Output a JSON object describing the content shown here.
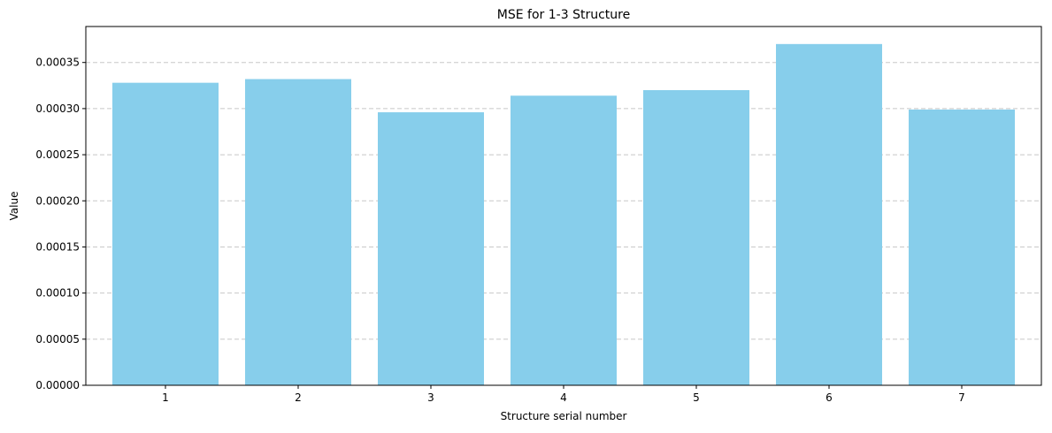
{
  "chart_data": {
    "type": "bar",
    "title": "MSE for 1-3 Structure",
    "xlabel": "Structure serial number",
    "ylabel": "Value",
    "categories": [
      "1",
      "2",
      "3",
      "4",
      "5",
      "6",
      "7"
    ],
    "values": [
      0.000328,
      0.000332,
      0.000296,
      0.000314,
      0.00032,
      0.00037,
      0.000299
    ],
    "ylim": [
      0,
      0.000389
    ],
    "yticks": [
      "0.00000",
      "0.00005",
      "0.00010",
      "0.00015",
      "0.00020",
      "0.00025",
      "0.00030",
      "0.00035"
    ],
    "ytick_values": [
      0,
      5e-05,
      0.0001,
      0.00015,
      0.0002,
      0.00025,
      0.0003,
      0.00035
    ],
    "grid": "y-dashed",
    "bar_color": "#87CEEB"
  }
}
